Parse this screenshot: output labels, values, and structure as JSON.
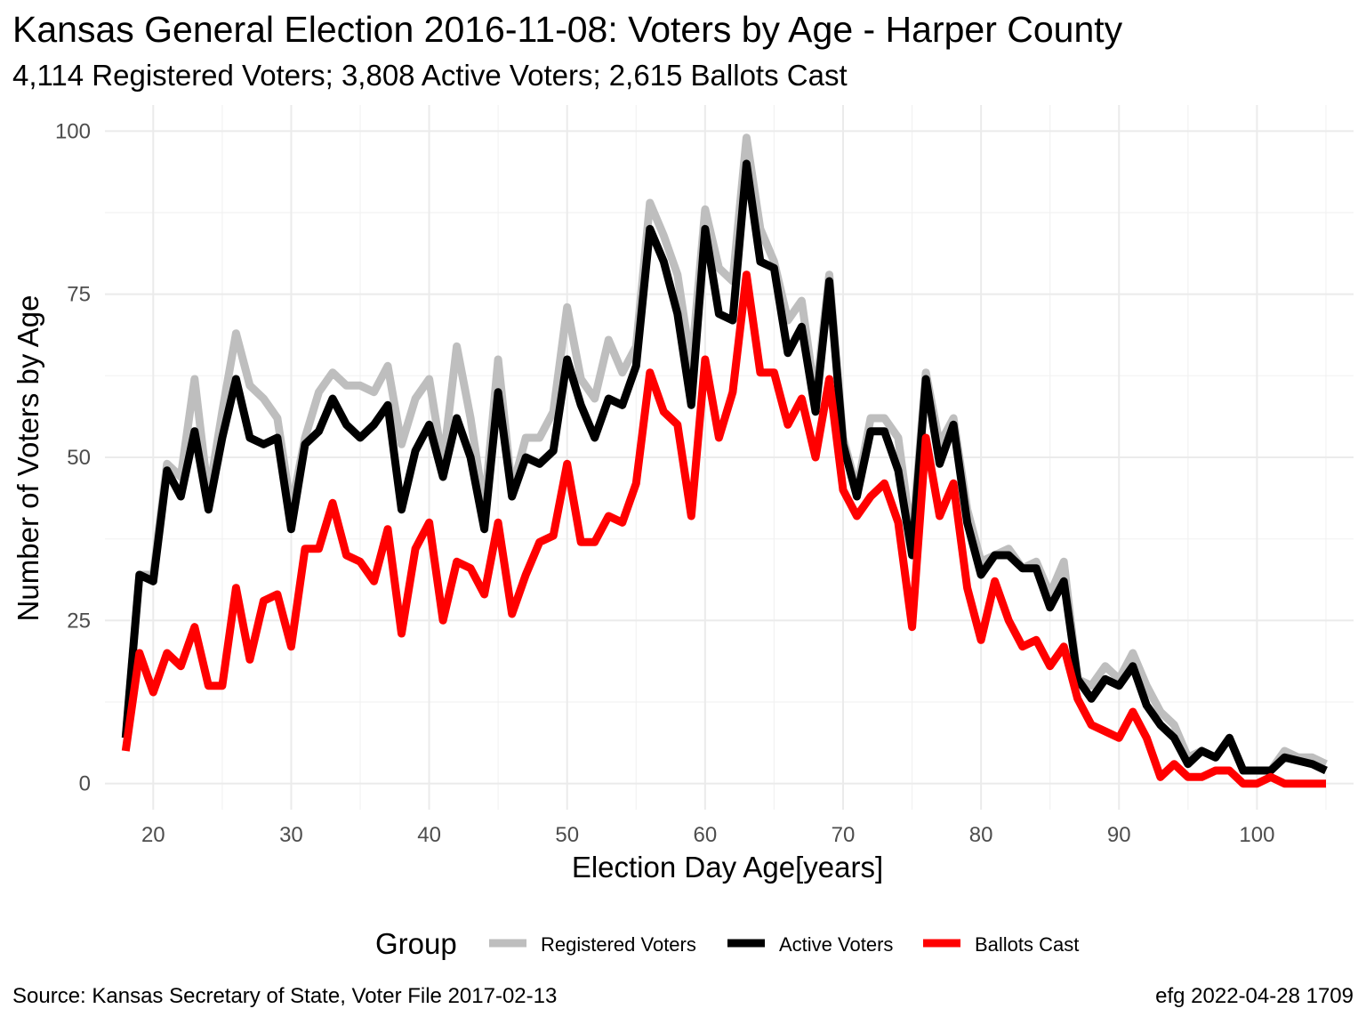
{
  "chart_data": {
    "type": "line",
    "title": "Kansas General Election 2016-11-08:  Voters by Age - Harper County",
    "subtitle": "4,114 Registered Voters; 3,808 Active Voters; 2,615 Ballots Cast",
    "xlabel": "Election Day Age[years]",
    "ylabel": "Number of Voters by Age",
    "xlim": [
      16.5,
      107
    ],
    "ylim": [
      -4,
      104
    ],
    "x_ticks": [
      20,
      30,
      40,
      50,
      60,
      70,
      80,
      90,
      100
    ],
    "y_ticks": [
      0,
      25,
      50,
      75,
      100
    ],
    "grid": true,
    "legend": {
      "title": "Group",
      "position": "bottom"
    },
    "x": [
      18,
      19,
      20,
      21,
      22,
      23,
      24,
      25,
      26,
      27,
      28,
      29,
      30,
      31,
      32,
      33,
      34,
      35,
      36,
      37,
      38,
      39,
      40,
      41,
      42,
      43,
      44,
      45,
      46,
      47,
      48,
      49,
      50,
      51,
      52,
      53,
      54,
      55,
      56,
      57,
      58,
      59,
      60,
      61,
      62,
      63,
      64,
      65,
      66,
      67,
      68,
      69,
      70,
      71,
      72,
      73,
      74,
      75,
      76,
      77,
      78,
      79,
      80,
      81,
      82,
      83,
      84,
      85,
      86,
      87,
      88,
      89,
      90,
      91,
      92,
      93,
      94,
      95,
      96,
      97,
      98,
      99,
      100,
      101,
      102,
      103,
      104,
      105
    ],
    "series": [
      {
        "name": "Registered Voters",
        "color": "#bebebe",
        "values": [
          7,
          32,
          32,
          49,
          47,
          62,
          44,
          57,
          69,
          61,
          59,
          56,
          42,
          53,
          60,
          63,
          61,
          61,
          60,
          64,
          52,
          59,
          62,
          49,
          67,
          56,
          42,
          65,
          45,
          53,
          53,
          57,
          73,
          62,
          59,
          68,
          63,
          67,
          89,
          84,
          78,
          64,
          88,
          79,
          77,
          99,
          85,
          80,
          71,
          74,
          59,
          78,
          53,
          45,
          56,
          56,
          53,
          37,
          63,
          52,
          56,
          42,
          34,
          35,
          36,
          33,
          34,
          29,
          34,
          16,
          15,
          18,
          16,
          20,
          15,
          11,
          9,
          4,
          5,
          4,
          7,
          2,
          2,
          2,
          5,
          4,
          4,
          3
        ]
      },
      {
        "name": "Active Voters",
        "color": "#000000",
        "values": [
          7,
          32,
          31,
          48,
          44,
          54,
          42,
          53,
          62,
          53,
          52,
          53,
          39,
          52,
          54,
          59,
          55,
          53,
          55,
          58,
          42,
          51,
          55,
          47,
          56,
          50,
          39,
          60,
          44,
          50,
          49,
          51,
          65,
          58,
          53,
          59,
          58,
          64,
          85,
          80,
          72,
          58,
          85,
          72,
          71,
          95,
          80,
          79,
          66,
          70,
          57,
          77,
          52,
          44,
          54,
          54,
          48,
          35,
          62,
          49,
          55,
          40,
          32,
          35,
          35,
          33,
          33,
          27,
          31,
          16,
          13,
          16,
          15,
          18,
          12,
          9,
          7,
          3,
          5,
          4,
          7,
          2,
          2,
          2,
          4,
          3.5,
          3,
          2
        ]
      },
      {
        "name": "Ballots Cast",
        "color": "#ff0000",
        "values": [
          5,
          20,
          14,
          20,
          18,
          24,
          15,
          15,
          30,
          19,
          28,
          29,
          21,
          36,
          36,
          43,
          35,
          34,
          31,
          39,
          23,
          36,
          40,
          25,
          34,
          33,
          29,
          40,
          26,
          32,
          37,
          38,
          49,
          37,
          37,
          41,
          40,
          46,
          63,
          57,
          55,
          41,
          65,
          53,
          60,
          78,
          63,
          63,
          55,
          59,
          50,
          62,
          45,
          41,
          44,
          46,
          40,
          24,
          53,
          41,
          46,
          30,
          22,
          31,
          25,
          21,
          22,
          18,
          21,
          13,
          9,
          8,
          7,
          11,
          7,
          1,
          3,
          1,
          1,
          2,
          2,
          0,
          0,
          1,
          0,
          0,
          0,
          0
        ]
      }
    ],
    "caption_left": "Source:  Kansas Secretary of State, Voter File  2017-02-13",
    "caption_right": "efg 2022-04-28 1709"
  }
}
